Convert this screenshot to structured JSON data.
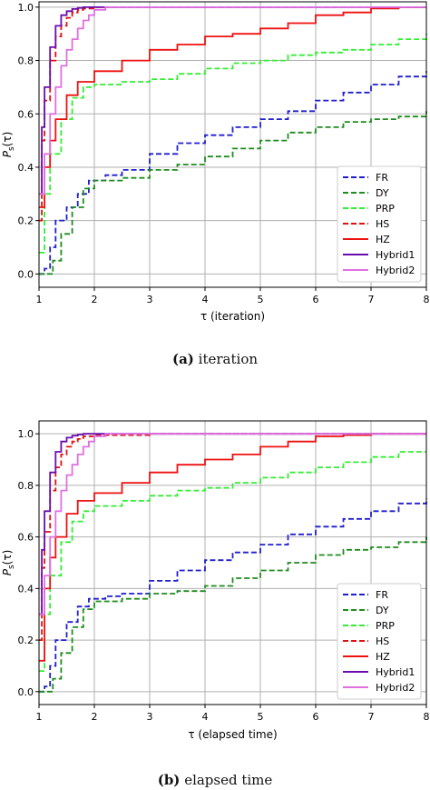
{
  "chart_data": [
    {
      "type": "line",
      "caption_tag": "(a)",
      "caption_text": "iteration",
      "xlabel": "τ (iteration)",
      "ylabel": "P_s(τ)",
      "xlim": [
        1,
        8
      ],
      "ylim": [
        -0.05,
        1.02
      ],
      "xticks": [
        1,
        2,
        3,
        4,
        5,
        6,
        7,
        8
      ],
      "yticks": [
        0.0,
        0.2,
        0.4,
        0.6,
        0.8,
        1.0
      ],
      "grid": true,
      "legend_position": "lower-right",
      "series": [
        {
          "name": "FR",
          "color": "#1f1fd0",
          "dash": "dashed",
          "x": [
            1.0,
            1.1,
            1.2,
            1.3,
            1.5,
            1.7,
            1.9,
            2.2,
            2.5,
            3.0,
            3.5,
            4.0,
            4.5,
            5.0,
            5.5,
            6.0,
            6.5,
            7.0,
            7.5,
            8.0
          ],
          "y": [
            0.0,
            0.02,
            0.1,
            0.2,
            0.25,
            0.3,
            0.35,
            0.37,
            0.39,
            0.45,
            0.49,
            0.52,
            0.55,
            0.58,
            0.61,
            0.65,
            0.68,
            0.71,
            0.74,
            0.76
          ]
        },
        {
          "name": "DY",
          "color": "#1e8c1e",
          "dash": "dashed",
          "x": [
            1.0,
            1.15,
            1.25,
            1.4,
            1.6,
            1.8,
            2.0,
            2.5,
            3.0,
            3.5,
            4.0,
            4.5,
            5.0,
            5.5,
            6.0,
            6.5,
            7.0,
            7.5,
            8.0
          ],
          "y": [
            0.0,
            0.0,
            0.05,
            0.15,
            0.25,
            0.32,
            0.35,
            0.36,
            0.39,
            0.41,
            0.44,
            0.47,
            0.5,
            0.53,
            0.55,
            0.57,
            0.58,
            0.59,
            0.61
          ]
        },
        {
          "name": "PRP",
          "color": "#33ee33",
          "dash": "dashed",
          "x": [
            1.0,
            1.1,
            1.2,
            1.4,
            1.6,
            1.8,
            2.0,
            2.5,
            3.0,
            3.5,
            4.0,
            4.5,
            5.0,
            5.5,
            6.0,
            6.5,
            7.0,
            7.5,
            8.0
          ],
          "y": [
            0.08,
            0.3,
            0.45,
            0.58,
            0.66,
            0.7,
            0.71,
            0.72,
            0.73,
            0.75,
            0.77,
            0.79,
            0.8,
            0.82,
            0.83,
            0.84,
            0.86,
            0.88,
            0.9
          ]
        },
        {
          "name": "HS",
          "color": "#e01010",
          "dash": "dashed",
          "x": [
            1.0,
            1.05,
            1.1,
            1.2,
            1.3,
            1.4,
            1.5,
            1.6,
            1.7,
            1.8,
            2.0,
            3.0,
            8.0
          ],
          "y": [
            0.2,
            0.5,
            0.65,
            0.8,
            0.89,
            0.93,
            0.96,
            0.98,
            0.99,
            0.995,
            1.0,
            1.0,
            1.0
          ]
        },
        {
          "name": "HZ",
          "color": "#ee1111",
          "dash": "solid",
          "x": [
            1.0,
            1.1,
            1.2,
            1.3,
            1.5,
            1.7,
            2.0,
            2.5,
            3.0,
            3.5,
            4.0,
            4.5,
            5.0,
            5.5,
            6.0,
            6.5,
            7.0,
            7.5,
            8.0
          ],
          "y": [
            0.25,
            0.4,
            0.5,
            0.58,
            0.67,
            0.72,
            0.76,
            0.8,
            0.84,
            0.86,
            0.89,
            0.9,
            0.92,
            0.94,
            0.97,
            0.98,
            0.995,
            1.0,
            1.0
          ]
        },
        {
          "name": "Hybrid1",
          "color": "#6a0dad",
          "dash": "solid",
          "x": [
            1.0,
            1.05,
            1.1,
            1.2,
            1.3,
            1.4,
            1.5,
            1.6,
            1.7,
            1.8,
            2.0,
            8.0
          ],
          "y": [
            0.3,
            0.55,
            0.7,
            0.85,
            0.93,
            0.97,
            0.985,
            0.993,
            0.997,
            1.0,
            1.0,
            1.0
          ]
        },
        {
          "name": "Hybrid2",
          "color": "#e070e0",
          "dash": "solid",
          "x": [
            1.0,
            1.1,
            1.2,
            1.3,
            1.4,
            1.5,
            1.6,
            1.7,
            1.8,
            1.9,
            2.0,
            2.2,
            8.0
          ],
          "y": [
            0.3,
            0.45,
            0.6,
            0.7,
            0.78,
            0.84,
            0.88,
            0.92,
            0.95,
            0.97,
            0.99,
            1.0,
            1.0
          ]
        }
      ]
    },
    {
      "type": "line",
      "caption_tag": "(b)",
      "caption_text": "elapsed time",
      "xlabel": "τ (elapsed time)",
      "ylabel": "P_s(τ)",
      "xlim": [
        1,
        8
      ],
      "ylim": [
        -0.05,
        1.05
      ],
      "xticks": [
        1,
        2,
        3,
        4,
        5,
        6,
        7,
        8
      ],
      "yticks": [
        0.0,
        0.2,
        0.4,
        0.6,
        0.8,
        1.0
      ],
      "grid": true,
      "legend_position": "lower-right",
      "series": [
        {
          "name": "FR",
          "color": "#1f1fd0",
          "dash": "dashed",
          "x": [
            1.0,
            1.1,
            1.2,
            1.3,
            1.5,
            1.7,
            1.9,
            2.2,
            2.5,
            3.0,
            3.5,
            4.0,
            4.5,
            5.0,
            5.5,
            6.0,
            6.5,
            7.0,
            7.5,
            8.0
          ],
          "y": [
            0.0,
            0.02,
            0.1,
            0.2,
            0.27,
            0.33,
            0.36,
            0.37,
            0.38,
            0.43,
            0.47,
            0.51,
            0.54,
            0.57,
            0.61,
            0.64,
            0.67,
            0.7,
            0.73,
            0.75
          ]
        },
        {
          "name": "DY",
          "color": "#1e8c1e",
          "dash": "dashed",
          "x": [
            1.0,
            1.15,
            1.25,
            1.4,
            1.6,
            1.8,
            2.0,
            2.5,
            3.0,
            3.5,
            4.0,
            4.5,
            5.0,
            5.5,
            6.0,
            6.5,
            7.0,
            7.5,
            8.0
          ],
          "y": [
            0.0,
            0.0,
            0.05,
            0.15,
            0.25,
            0.32,
            0.35,
            0.36,
            0.38,
            0.39,
            0.41,
            0.44,
            0.47,
            0.5,
            0.53,
            0.55,
            0.56,
            0.58,
            0.6
          ]
        },
        {
          "name": "PRP",
          "color": "#33ee33",
          "dash": "dashed",
          "x": [
            1.0,
            1.1,
            1.2,
            1.4,
            1.6,
            1.8,
            2.0,
            2.5,
            3.0,
            3.5,
            4.0,
            4.5,
            5.0,
            5.5,
            6.0,
            6.5,
            7.0,
            7.5,
            8.0
          ],
          "y": [
            0.08,
            0.3,
            0.45,
            0.58,
            0.66,
            0.7,
            0.72,
            0.74,
            0.76,
            0.78,
            0.79,
            0.81,
            0.83,
            0.85,
            0.87,
            0.89,
            0.91,
            0.93,
            0.93
          ]
        },
        {
          "name": "HS",
          "color": "#e01010",
          "dash": "dashed",
          "x": [
            1.0,
            1.05,
            1.1,
            1.2,
            1.3,
            1.4,
            1.5,
            1.6,
            1.7,
            1.8,
            2.0,
            3.0,
            8.0
          ],
          "y": [
            0.2,
            0.48,
            0.62,
            0.78,
            0.87,
            0.92,
            0.95,
            0.97,
            0.98,
            0.99,
            0.995,
            1.0,
            1.0
          ]
        },
        {
          "name": "HZ",
          "color": "#ee1111",
          "dash": "solid",
          "x": [
            1.0,
            1.1,
            1.2,
            1.3,
            1.5,
            1.7,
            2.0,
            2.5,
            3.0,
            3.5,
            4.0,
            4.5,
            5.0,
            5.5,
            6.0,
            6.5,
            7.0,
            7.5,
            8.0
          ],
          "y": [
            0.12,
            0.4,
            0.52,
            0.6,
            0.69,
            0.74,
            0.77,
            0.81,
            0.85,
            0.88,
            0.9,
            0.92,
            0.95,
            0.97,
            0.99,
            0.995,
            1.0,
            1.0,
            1.0
          ]
        },
        {
          "name": "Hybrid1",
          "color": "#6a0dad",
          "dash": "solid",
          "x": [
            1.0,
            1.05,
            1.1,
            1.2,
            1.3,
            1.4,
            1.5,
            1.6,
            1.7,
            1.8,
            2.0,
            8.0
          ],
          "y": [
            0.3,
            0.55,
            0.7,
            0.85,
            0.93,
            0.97,
            0.985,
            0.993,
            0.997,
            1.0,
            1.0,
            1.0
          ]
        },
        {
          "name": "Hybrid2",
          "color": "#e070e0",
          "dash": "solid",
          "x": [
            1.0,
            1.1,
            1.2,
            1.3,
            1.4,
            1.5,
            1.6,
            1.7,
            1.8,
            1.9,
            2.0,
            2.2,
            8.0
          ],
          "y": [
            0.3,
            0.45,
            0.6,
            0.7,
            0.78,
            0.84,
            0.88,
            0.92,
            0.95,
            0.97,
            0.99,
            1.0,
            1.0
          ]
        }
      ]
    }
  ]
}
